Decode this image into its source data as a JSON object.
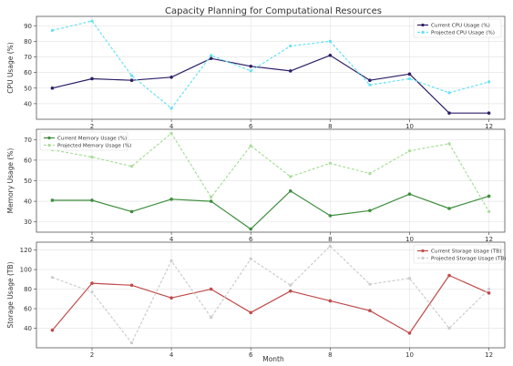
{
  "title": "Capacity Planning for Computational Resources",
  "xlabel": "Month",
  "chart_data": [
    {
      "type": "line",
      "x": [
        1,
        2,
        3,
        4,
        5,
        6,
        7,
        8,
        9,
        10,
        11,
        12
      ],
      "series": [
        {
          "name": "Current CPU Usage (%)",
          "values": [
            50,
            56,
            55,
            57,
            69,
            64,
            61,
            71,
            55,
            59,
            34,
            34
          ],
          "color": "#2e1f66",
          "style": "solid"
        },
        {
          "name": "Projected CPU Usage (%)",
          "values": [
            87,
            93,
            58,
            37,
            71,
            61,
            77,
            80,
            52,
            56,
            47,
            54
          ],
          "color": "#67e1f3",
          "style": "dashed"
        }
      ],
      "ylabel": "CPU Usage (%)",
      "xlim": [
        0.6,
        12.4
      ],
      "ylim": [
        30,
        96
      ],
      "yticks": [
        40,
        50,
        60,
        70,
        80,
        90
      ],
      "xticks": [
        2,
        4,
        6,
        8,
        10,
        12
      ],
      "grid": true,
      "legend": "top-right"
    },
    {
      "type": "line",
      "x": [
        1,
        2,
        3,
        4,
        5,
        6,
        7,
        8,
        9,
        10,
        11,
        12
      ],
      "series": [
        {
          "name": "Current Memory Usage (%)",
          "values": [
            40.5,
            40.5,
            35,
            41,
            40,
            26.5,
            45,
            33,
            35.5,
            43.5,
            36.5,
            42.5
          ],
          "color": "#3f8e3f",
          "style": "solid"
        },
        {
          "name": "Projected Memory Usage (%)",
          "values": [
            65,
            61.5,
            57,
            73,
            42,
            67,
            52,
            58.5,
            53.5,
            64.5,
            68,
            35
          ],
          "color": "#a8dd98",
          "style": "dashed"
        }
      ],
      "ylabel": "Memory Usage (%)",
      "xlim": [
        0.6,
        12.4
      ],
      "ylim": [
        25,
        75
      ],
      "yticks": [
        30,
        40,
        50,
        60,
        70
      ],
      "xticks": [
        2,
        4,
        6,
        8,
        10,
        12
      ],
      "grid": true,
      "legend": "top-left"
    },
    {
      "type": "line",
      "x": [
        1,
        2,
        3,
        4,
        5,
        6,
        7,
        8,
        9,
        10,
        11,
        12
      ],
      "series": [
        {
          "name": "Current Storage Usage (TB)",
          "values": [
            38,
            86,
            84,
            71,
            80,
            56,
            78,
            68,
            58,
            35,
            94,
            76
          ],
          "color": "#c14b4b",
          "style": "solid"
        },
        {
          "name": "Projected Storage Usage (TB)",
          "values": [
            92,
            77,
            25,
            109,
            51,
            111,
            84,
            124,
            85,
            91,
            40,
            80
          ],
          "color": "#cccccc",
          "style": "dashed"
        }
      ],
      "ylabel": "Storage Usage (TB)",
      "xlim": [
        0.6,
        12.4
      ],
      "ylim": [
        20,
        128
      ],
      "yticks": [
        40,
        60,
        80,
        100,
        120
      ],
      "xticks": [
        2,
        4,
        6,
        8,
        10,
        12
      ],
      "grid": true,
      "legend": "top-right"
    }
  ]
}
